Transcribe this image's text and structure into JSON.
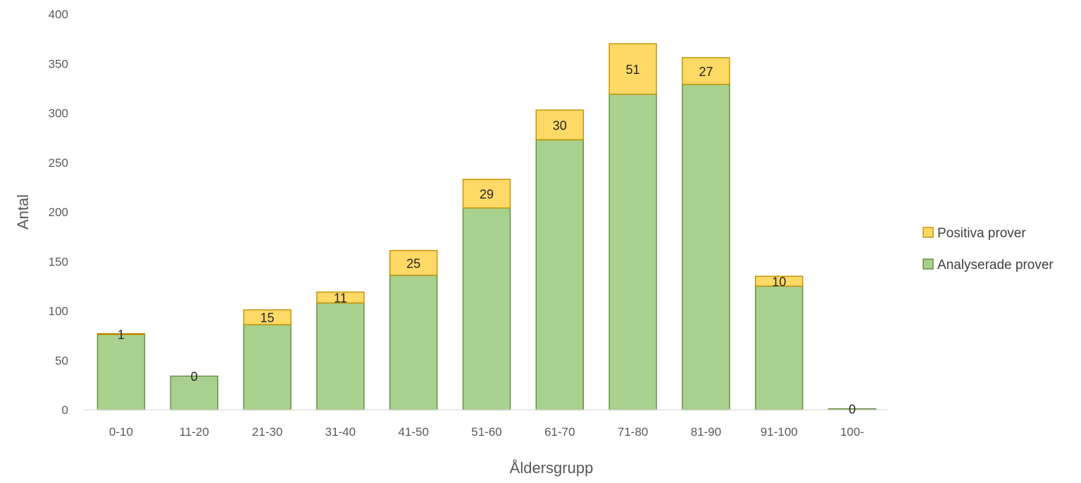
{
  "chart_data": {
    "type": "bar",
    "stacked": true,
    "categories": [
      "0-10",
      "11-20",
      "21-30",
      "31-40",
      "41-50",
      "51-60",
      "61-70",
      "71-80",
      "81-90",
      "91-100",
      "100-"
    ],
    "series": [
      {
        "name": "Analyserade prover",
        "color": "#a9d18e",
        "stroke": "#5f8b3d",
        "values": [
          76,
          34,
          86,
          108,
          136,
          204,
          273,
          319,
          329,
          125,
          1
        ]
      },
      {
        "name": "Positiva prover",
        "color": "#ffd966",
        "stroke": "#bf9000",
        "values": [
          1,
          0,
          15,
          11,
          25,
          29,
          30,
          51,
          27,
          10,
          0
        ]
      }
    ],
    "data_labels": [
      "1",
      "0",
      "15",
      "11",
      "25",
      "29",
      "30",
      "51",
      "27",
      "10",
      "0"
    ],
    "xlabel": "Åldersgrupp",
    "ylabel": "Antal",
    "ylim": [
      0,
      400
    ],
    "yticks": [
      0,
      50,
      100,
      150,
      200,
      250,
      300,
      350,
      400
    ],
    "grid": false,
    "legend": {
      "position": "right",
      "entries": [
        "Positiva prover",
        "Analyserade prover"
      ]
    }
  }
}
